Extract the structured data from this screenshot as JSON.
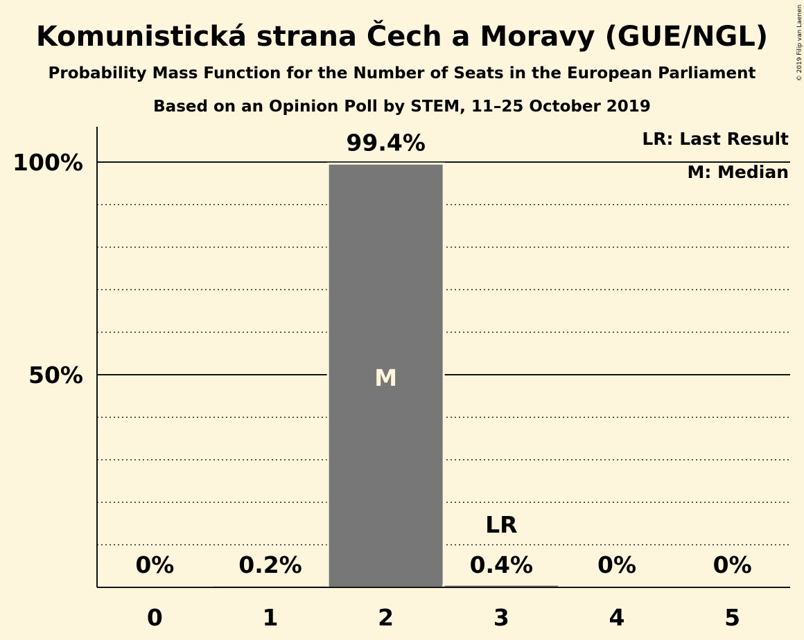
{
  "chart_data": {
    "type": "bar",
    "title": "Komunistická strana Čech a Moravy (GUE/NGL)",
    "subtitle": "Probability Mass Function for the Number of Seats in the European Parliament",
    "subtitle2": "Based on an Opinion Poll by STEM, 11–25 October 2019",
    "categories": [
      "0",
      "1",
      "2",
      "3",
      "4",
      "5"
    ],
    "values": [
      0,
      0.2,
      99.4,
      0.4,
      0,
      0
    ],
    "value_labels": [
      "0%",
      "0.2%",
      "99.4%",
      "0.4%",
      "0%",
      "0%"
    ],
    "ylim": [
      0,
      110
    ],
    "y_ticks": [
      {
        "value": 50,
        "label": "50%"
      },
      {
        "value": 100,
        "label": "100%"
      }
    ],
    "minor_gridlines": [
      10,
      20,
      30,
      40,
      60,
      70,
      80,
      90
    ],
    "median_index": 2,
    "median_label": "M",
    "last_result_index": 3,
    "last_result_label": "LR",
    "legend": [
      "LR: Last Result",
      "M: Median"
    ],
    "legend_position": "top-right",
    "bar_color": "#777777",
    "background_color": "#fdf6dc",
    "copyright": "© 2019 Filip van Laenen"
  }
}
